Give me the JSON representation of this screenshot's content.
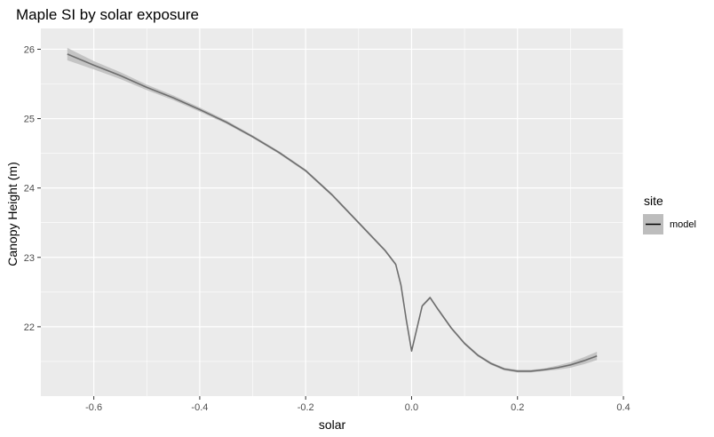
{
  "chart_data": {
    "type": "line",
    "title": "Maple SI by solar exposure",
    "xlabel": "solar",
    "ylabel": "Canopy Height (m)",
    "xlim": [
      -0.7,
      0.4
    ],
    "ylim": [
      21.0,
      26.3
    ],
    "xticks": [
      -0.6,
      -0.4,
      -0.2,
      0.0,
      0.2,
      0.4
    ],
    "xtick_labels": [
      "-0.6",
      "-0.4",
      "-0.2",
      "0.0",
      "0.2",
      "0.4"
    ],
    "yticks": [
      22,
      23,
      24,
      25,
      26
    ],
    "ytick_labels": [
      "22",
      "23",
      "24",
      "25",
      "26"
    ],
    "grid": true,
    "legend": {
      "title": "site",
      "position": "right"
    },
    "colors": {
      "panel": "#ebebeb",
      "grid": "#ffffff",
      "line": "#6e6e6e",
      "ribbon": "#bdbdbd"
    },
    "series": [
      {
        "name": "model",
        "x": [
          -0.65,
          -0.6,
          -0.55,
          -0.5,
          -0.45,
          -0.4,
          -0.35,
          -0.3,
          -0.25,
          -0.2,
          -0.15,
          -0.1,
          -0.05,
          -0.03,
          -0.02,
          -0.01,
          0.0,
          0.02,
          0.035,
          0.05,
          0.075,
          0.1,
          0.125,
          0.15,
          0.175,
          0.2,
          0.225,
          0.25,
          0.275,
          0.3,
          0.325,
          0.35
        ],
        "y": [
          25.93,
          25.77,
          25.62,
          25.45,
          25.3,
          25.13,
          24.95,
          24.74,
          24.51,
          24.25,
          23.9,
          23.5,
          23.1,
          22.9,
          22.6,
          22.1,
          21.65,
          22.3,
          22.42,
          22.25,
          21.98,
          21.76,
          21.59,
          21.47,
          21.39,
          21.36,
          21.36,
          21.38,
          21.41,
          21.45,
          21.51,
          21.58
        ],
        "ci_halfwidth": [
          0.09,
          0.06,
          0.05,
          0.04,
          0.035,
          0.03,
          0.025,
          0.02,
          0.02,
          0.02,
          0.02,
          0.02,
          0.02,
          0.02,
          0.02,
          0.02,
          0.02,
          0.02,
          0.02,
          0.02,
          0.02,
          0.02,
          0.02,
          0.02,
          0.02,
          0.02,
          0.02,
          0.02,
          0.03,
          0.04,
          0.05,
          0.06
        ]
      }
    ]
  }
}
